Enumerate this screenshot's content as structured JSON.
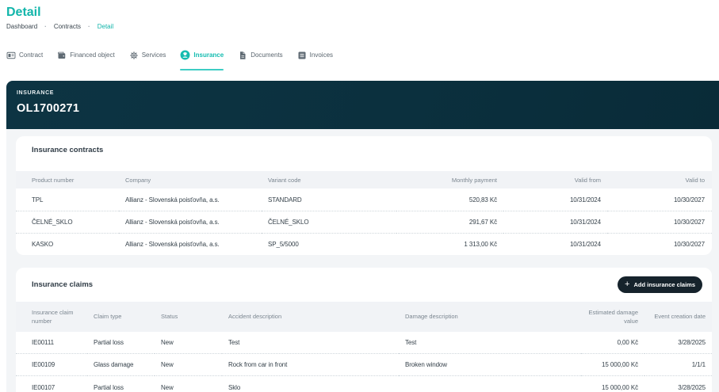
{
  "page": {
    "title": "Detail"
  },
  "breadcrumb": {
    "items": [
      "Dashboard",
      "Contracts",
      "Detail"
    ],
    "separator": "·"
  },
  "tabs": [
    {
      "label": "Contract",
      "icon": "id-card-icon",
      "active": false
    },
    {
      "label": "Financed object",
      "icon": "wallet-icon",
      "active": false
    },
    {
      "label": "Services",
      "icon": "gear-icon",
      "active": false
    },
    {
      "label": "Insurance",
      "icon": "insurance-agent-icon",
      "active": true
    },
    {
      "label": "Documents",
      "icon": "document-icon",
      "active": false
    },
    {
      "label": "Invoices",
      "icon": "invoice-list-icon",
      "active": false
    }
  ],
  "hero": {
    "label": "INSURANCE",
    "contract_number": "OL1700271"
  },
  "contracts_section": {
    "title": "Insurance contracts",
    "columns": [
      "Product number",
      "Company",
      "Variant code",
      "Monthly payment",
      "Valid from",
      "Valid to"
    ],
    "rows": [
      [
        "TPL",
        "Allianz - Slovenská poisťovňa, a.s.",
        "STANDARD",
        "520,83 Kč",
        "10/31/2024",
        "10/30/2027"
      ],
      [
        "ČELNÉ_SKLO",
        "Allianz - Slovenská poisťovňa, a.s.",
        "ČELNÉ_SKLO",
        "291,67 Kč",
        "10/31/2024",
        "10/30/2027"
      ],
      [
        "KASKO",
        "Allianz - Slovenská poisťovňa, a.s.",
        "SP_5/5000",
        "1 313,00 Kč",
        "10/31/2024",
        "10/30/2027"
      ]
    ]
  },
  "claims_section": {
    "title": "Insurance claims",
    "add_button_label": "Add insurance claims",
    "columns": [
      "Insurance claim number",
      "Claim type",
      "Status",
      "Accident description",
      "Damage description",
      "Estimated damage value",
      "Event creation date"
    ],
    "rows": [
      [
        "IE00111",
        "Partial loss",
        "New",
        "Test",
        "Test",
        "0,00 Kč",
        "3/28/2025"
      ],
      [
        "IE00109",
        "Glass damage",
        "New",
        "Rock from car in front",
        "Broken window",
        "15 000,00 Kč",
        "1/1/1"
      ],
      [
        "IE00107",
        "Partial loss",
        "New",
        "Sklo",
        "",
        "15 000,00 Kč",
        "3/28/2025"
      ]
    ]
  },
  "colors": {
    "accent": "#14bcb0",
    "hero_bg": "#0b303e",
    "button_bg": "#16232c"
  }
}
